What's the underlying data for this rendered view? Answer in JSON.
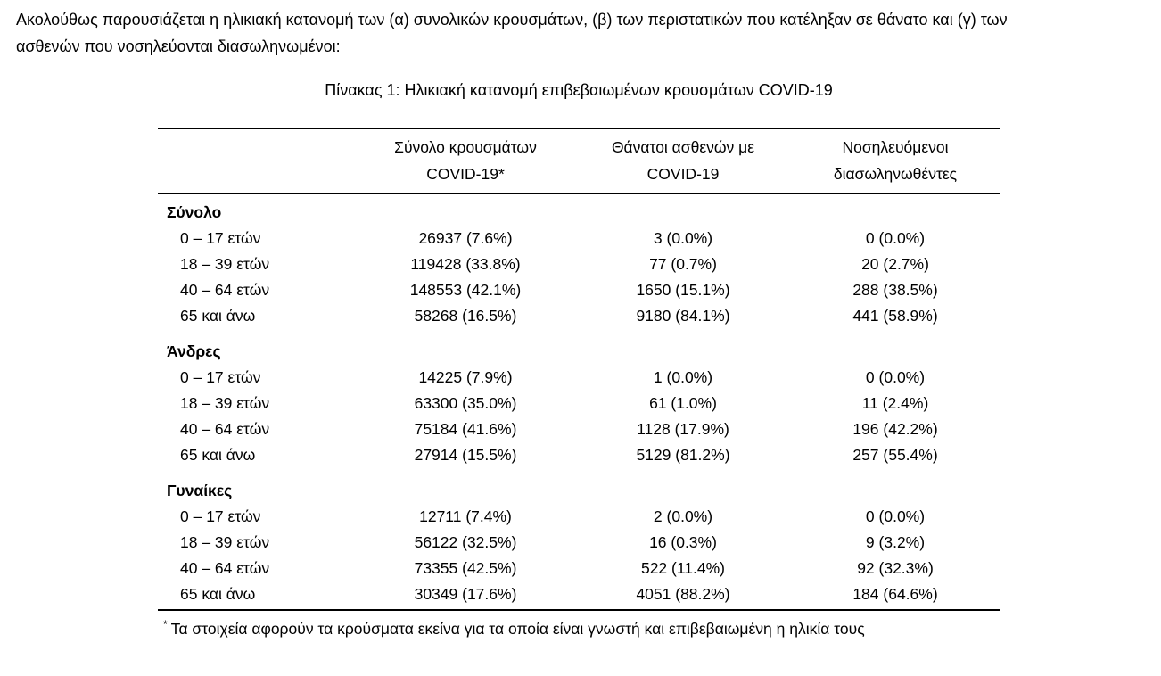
{
  "intro": {
    "line1": "Ακολούθως παρουσιάζεται η ηλικιακή κατανομή των (α) συνολικών κρουσμάτων, (β) των περιστατικών που κατέληξαν σε θάνατο και (γ) των",
    "line2": "ασθενών που νοσηλεύονται διασωληνωμένοι:"
  },
  "table": {
    "title": "Πίνακας 1: Ηλικιακή κατανομή επιβεβαιωμένων κρουσμάτων COVID-19",
    "columns": [
      {
        "line1": "",
        "line2": ""
      },
      {
        "line1": "Σύνολο κρουσμάτων",
        "line2": "COVID-19*"
      },
      {
        "line1": "Θάνατοι ασθενών με",
        "line2": "COVID-19"
      },
      {
        "line1": "Νοσηλευόμενοι",
        "line2": "διασωληνωθέντες"
      }
    ],
    "sections": [
      {
        "label": "Σύνολο",
        "rows": [
          {
            "age": "0 – 17 ετών",
            "cases": "26937 (7.6%)",
            "deaths": "3 (0.0%)",
            "intubated": "0 (0.0%)"
          },
          {
            "age": "18 – 39 ετών",
            "cases": "119428 (33.8%)",
            "deaths": "77 (0.7%)",
            "intubated": "20 (2.7%)"
          },
          {
            "age": "40 – 64 ετών",
            "cases": "148553 (42.1%)",
            "deaths": "1650 (15.1%)",
            "intubated": "288 (38.5%)"
          },
          {
            "age": "65 και άνω",
            "cases": "58268 (16.5%)",
            "deaths": "9180 (84.1%)",
            "intubated": "441 (58.9%)"
          }
        ]
      },
      {
        "label": "Άνδρες",
        "rows": [
          {
            "age": "0 – 17 ετών",
            "cases": "14225 (7.9%)",
            "deaths": "1 (0.0%)",
            "intubated": "0 (0.0%)"
          },
          {
            "age": "18 – 39 ετών",
            "cases": "63300 (35.0%)",
            "deaths": "61 (1.0%)",
            "intubated": "11 (2.4%)"
          },
          {
            "age": "40 – 64 ετών",
            "cases": "75184 (41.6%)",
            "deaths": "1128 (17.9%)",
            "intubated": "196 (42.2%)"
          },
          {
            "age": "65 και άνω",
            "cases": "27914 (15.5%)",
            "deaths": "5129 (81.2%)",
            "intubated": "257 (55.4%)"
          }
        ]
      },
      {
        "label": "Γυναίκες",
        "rows": [
          {
            "age": "0 – 17 ετών",
            "cases": "12711 (7.4%)",
            "deaths": "2 (0.0%)",
            "intubated": "0 (0.0%)"
          },
          {
            "age": "18 – 39 ετών",
            "cases": "56122 (32.5%)",
            "deaths": "16 (0.3%)",
            "intubated": "9 (3.2%)"
          },
          {
            "age": "40 – 64 ετών",
            "cases": "73355 (42.5%)",
            "deaths": "522 (11.4%)",
            "intubated": "92 (32.3%)"
          },
          {
            "age": "65 και άνω",
            "cases": "30349 (17.6%)",
            "deaths": "4051 (88.2%)",
            "intubated": "184 (64.6%)"
          }
        ]
      }
    ],
    "footnote_marker": "*",
    "footnote": "Τα στοιχεία αφορούν τα κρούσματα εκείνα για τα οποία είναι γνωστή και επιβεβαιωμένη η ηλικία τους"
  }
}
